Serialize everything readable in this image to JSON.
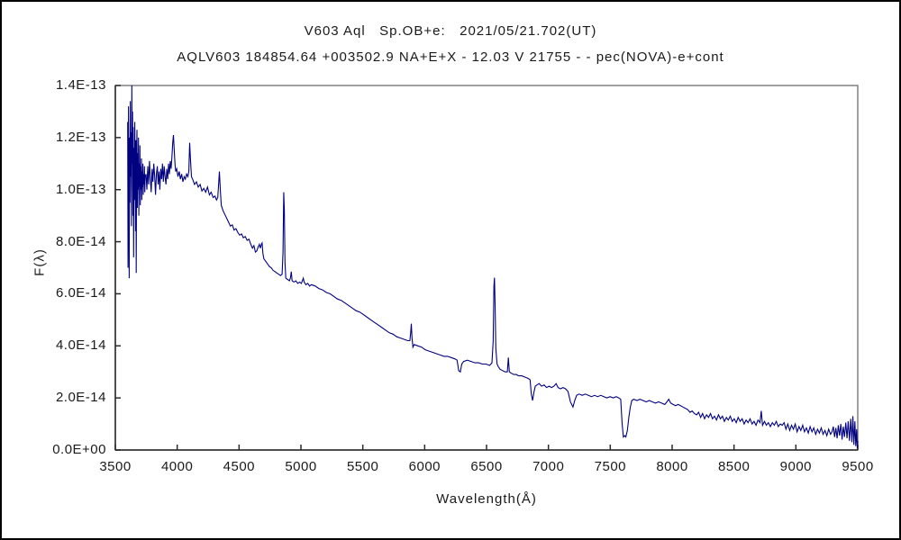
{
  "chart_data": {
    "type": "line",
    "title": "V603 Aql   Sp.OB+e:   2021/05/21.702(UT)",
    "subtitle": "AQLV603 184854.64 +003502.9 NA+E+X - 12.03 V 21755 - - pec(NOVA)-e+cont",
    "xlabel": "Wavelength(Å)",
    "ylabel": "F(λ)",
    "xlim": [
      3500,
      9500
    ],
    "ylim_e14": [
      0,
      14
    ],
    "grid": false,
    "legend": "none",
    "line_color": "#000080",
    "frame_color": "#808080",
    "axis_color": "#2a2a2a",
    "x_ticks": [
      3500,
      4000,
      4500,
      5000,
      5500,
      6000,
      6500,
      7000,
      7500,
      8000,
      8500,
      9000,
      9500
    ],
    "y_ticks": [
      {
        "label": "1.4E-13",
        "value": 14
      },
      {
        "label": "1.2E-13",
        "value": 12
      },
      {
        "label": "1.0E-13",
        "value": 10
      },
      {
        "label": "8.0E-14",
        "value": 8
      },
      {
        "label": "6.0E-14",
        "value": 6
      },
      {
        "label": "4.0E-14",
        "value": 4
      },
      {
        "label": "2.0E-14",
        "value": 2
      },
      {
        "label": "0.0E+00",
        "value": 0
      }
    ],
    "flux_unit_scale": "1e-14",
    "points_e14": [
      [
        3600,
        12.6
      ],
      [
        3603,
        7.0
      ],
      [
        3606,
        13.2
      ],
      [
        3609,
        10.2
      ],
      [
        3612,
        6.6
      ],
      [
        3615,
        12.0
      ],
      [
        3618,
        9.5
      ],
      [
        3621,
        13.4
      ],
      [
        3624,
        10.5
      ],
      [
        3627,
        12.2
      ],
      [
        3630,
        8.6
      ],
      [
        3633,
        14.0
      ],
      [
        3636,
        11.0
      ],
      [
        3639,
        13.0
      ],
      [
        3642,
        9.0
      ],
      [
        3645,
        12.4
      ],
      [
        3648,
        7.4
      ],
      [
        3651,
        11.6
      ],
      [
        3654,
        9.6
      ],
      [
        3657,
        12.6
      ],
      [
        3660,
        10.4
      ],
      [
        3663,
        8.4
      ],
      [
        3666,
        11.9
      ],
      [
        3669,
        6.8
      ],
      [
        3672,
        10.9
      ],
      [
        3675,
        12.3
      ],
      [
        3678,
        9.3
      ],
      [
        3681,
        11.4
      ],
      [
        3684,
        10.0
      ],
      [
        3687,
        12.0
      ],
      [
        3690,
        9.0
      ],
      [
        3693,
        11.0
      ],
      [
        3696,
        10.1
      ],
      [
        3699,
        11.7
      ],
      [
        3702,
        9.4
      ],
      [
        3705,
        10.9
      ],
      [
        3708,
        10.0
      ],
      [
        3711,
        11.2
      ],
      [
        3714,
        9.6
      ],
      [
        3717,
        10.7
      ],
      [
        3720,
        10.1
      ],
      [
        3723,
        11.0
      ],
      [
        3726,
        9.8
      ],
      [
        3729,
        10.6
      ],
      [
        3732,
        10.2
      ],
      [
        3735,
        10.9
      ],
      [
        3738,
        9.9
      ],
      [
        3741,
        10.5
      ],
      [
        3748,
        10.6
      ],
      [
        3755,
        10.0
      ],
      [
        3762,
        10.9
      ],
      [
        3769,
        10.2
      ],
      [
        3776,
        11.1
      ],
      [
        3783,
        10.4
      ],
      [
        3790,
        9.9
      ],
      [
        3797,
        10.8
      ],
      [
        3804,
        10.3
      ],
      [
        3811,
        11.0
      ],
      [
        3818,
        10.5
      ],
      [
        3825,
        9.8
      ],
      [
        3832,
        10.6
      ],
      [
        3839,
        10.9
      ],
      [
        3846,
        10.2
      ],
      [
        3853,
        10.7
      ],
      [
        3860,
        10.0
      ],
      [
        3867,
        10.8
      ],
      [
        3874,
        10.4
      ],
      [
        3881,
        11.0
      ],
      [
        3888,
        10.3
      ],
      [
        3895,
        10.9
      ],
      [
        3902,
        10.5
      ],
      [
        3909,
        10.2
      ],
      [
        3916,
        10.8
      ],
      [
        3923,
        10.4
      ],
      [
        3930,
        11.0
      ],
      [
        3937,
        10.6
      ],
      [
        3944,
        11.1
      ],
      [
        3951,
        10.8
      ],
      [
        3958,
        11.3
      ],
      [
        3964,
        11.8
      ],
      [
        3970,
        12.1
      ],
      [
        3976,
        11.5
      ],
      [
        3982,
        11.0
      ],
      [
        3988,
        10.7
      ],
      [
        3996,
        10.8
      ],
      [
        4006,
        10.5
      ],
      [
        4016,
        10.7
      ],
      [
        4026,
        10.4
      ],
      [
        4036,
        10.6
      ],
      [
        4046,
        10.3
      ],
      [
        4056,
        10.5
      ],
      [
        4066,
        10.4
      ],
      [
        4076,
        10.6
      ],
      [
        4086,
        10.5
      ],
      [
        4094,
        10.7
      ],
      [
        4101,
        11.8
      ],
      [
        4108,
        11.1
      ],
      [
        4115,
        10.5
      ],
      [
        4125,
        10.4
      ],
      [
        4140,
        10.2
      ],
      [
        4155,
        10.3
      ],
      [
        4170,
        10.1
      ],
      [
        4185,
        10.2
      ],
      [
        4200,
        9.95
      ],
      [
        4215,
        10.05
      ],
      [
        4230,
        9.9
      ],
      [
        4245,
        10.1
      ],
      [
        4260,
        9.8
      ],
      [
        4275,
        9.9
      ],
      [
        4290,
        9.7
      ],
      [
        4305,
        9.75
      ],
      [
        4318,
        9.6
      ],
      [
        4328,
        9.7
      ],
      [
        4336,
        10.3
      ],
      [
        4341,
        10.7
      ],
      [
        4348,
        10.0
      ],
      [
        4356,
        9.4
      ],
      [
        4370,
        9.2
      ],
      [
        4385,
        9.05
      ],
      [
        4400,
        8.9
      ],
      [
        4415,
        8.75
      ],
      [
        4430,
        8.6
      ],
      [
        4445,
        8.65
      ],
      [
        4460,
        8.45
      ],
      [
        4475,
        8.5
      ],
      [
        4490,
        8.35
      ],
      [
        4505,
        8.25
      ],
      [
        4520,
        8.3
      ],
      [
        4535,
        8.15
      ],
      [
        4550,
        8.2
      ],
      [
        4565,
        8.05
      ],
      [
        4580,
        8.1
      ],
      [
        4595,
        7.9
      ],
      [
        4608,
        7.75
      ],
      [
        4620,
        7.85
      ],
      [
        4632,
        7.6
      ],
      [
        4644,
        7.65
      ],
      [
        4654,
        7.8
      ],
      [
        4664,
        7.9
      ],
      [
        4672,
        7.75
      ],
      [
        4680,
        7.9
      ],
      [
        4686,
        7.95
      ],
      [
        4693,
        7.55
      ],
      [
        4700,
        7.35
      ],
      [
        4715,
        7.25
      ],
      [
        4730,
        7.15
      ],
      [
        4745,
        7.05
      ],
      [
        4760,
        7.0
      ],
      [
        4775,
        6.9
      ],
      [
        4790,
        6.85
      ],
      [
        4805,
        6.8
      ],
      [
        4820,
        6.75
      ],
      [
        4835,
        6.7
      ],
      [
        4848,
        6.75
      ],
      [
        4855,
        7.6
      ],
      [
        4861,
        9.9
      ],
      [
        4866,
        9.2
      ],
      [
        4871,
        7.2
      ],
      [
        4878,
        6.6
      ],
      [
        4892,
        6.55
      ],
      [
        4906,
        6.5
      ],
      [
        4915,
        6.6
      ],
      [
        4922,
        6.85
      ],
      [
        4929,
        6.5
      ],
      [
        4944,
        6.45
      ],
      [
        4959,
        6.5
      ],
      [
        4974,
        6.4
      ],
      [
        4989,
        6.45
      ],
      [
        5004,
        6.4
      ],
      [
        5012,
        6.5
      ],
      [
        5019,
        6.6
      ],
      [
        5026,
        6.45
      ],
      [
        5040,
        6.35
      ],
      [
        5055,
        6.4
      ],
      [
        5070,
        6.3
      ],
      [
        5085,
        6.35
      ],
      [
        5115,
        6.3
      ],
      [
        5145,
        6.2
      ],
      [
        5175,
        6.15
      ],
      [
        5205,
        6.05
      ],
      [
        5235,
        6.0
      ],
      [
        5265,
        5.9
      ],
      [
        5295,
        5.8
      ],
      [
        5325,
        5.75
      ],
      [
        5355,
        5.65
      ],
      [
        5385,
        5.55
      ],
      [
        5415,
        5.45
      ],
      [
        5445,
        5.35
      ],
      [
        5475,
        5.3
      ],
      [
        5505,
        5.2
      ],
      [
        5535,
        5.1
      ],
      [
        5565,
        5.0
      ],
      [
        5595,
        4.9
      ],
      [
        5625,
        4.8
      ],
      [
        5655,
        4.7
      ],
      [
        5685,
        4.6
      ],
      [
        5715,
        4.5
      ],
      [
        5745,
        4.45
      ],
      [
        5775,
        4.35
      ],
      [
        5805,
        4.3
      ],
      [
        5835,
        4.25
      ],
      [
        5862,
        4.2
      ],
      [
        5880,
        4.2
      ],
      [
        5887,
        4.5
      ],
      [
        5892,
        4.85
      ],
      [
        5898,
        4.3
      ],
      [
        5905,
        3.95
      ],
      [
        5915,
        4.05
      ],
      [
        5945,
        4.0
      ],
      [
        5975,
        3.95
      ],
      [
        6005,
        3.85
      ],
      [
        6035,
        3.8
      ],
      [
        6065,
        3.75
      ],
      [
        6095,
        3.7
      ],
      [
        6125,
        3.65
      ],
      [
        6155,
        3.6
      ],
      [
        6185,
        3.6
      ],
      [
        6215,
        3.55
      ],
      [
        6245,
        3.5
      ],
      [
        6262,
        3.45
      ],
      [
        6275,
        3.05
      ],
      [
        6288,
        3.0
      ],
      [
        6300,
        3.3
      ],
      [
        6315,
        3.4
      ],
      [
        6345,
        3.45
      ],
      [
        6375,
        3.4
      ],
      [
        6405,
        3.35
      ],
      [
        6435,
        3.35
      ],
      [
        6465,
        3.3
      ],
      [
        6495,
        3.3
      ],
      [
        6525,
        3.25
      ],
      [
        6544,
        3.35
      ],
      [
        6554,
        4.2
      ],
      [
        6560,
        6.3
      ],
      [
        6564,
        6.62
      ],
      [
        6569,
        5.6
      ],
      [
        6575,
        3.9
      ],
      [
        6585,
        3.3
      ],
      [
        6595,
        3.2
      ],
      [
        6610,
        3.1
      ],
      [
        6630,
        3.05
      ],
      [
        6650,
        3.0
      ],
      [
        6668,
        3.0
      ],
      [
        6676,
        3.55
      ],
      [
        6684,
        3.0
      ],
      [
        6700,
        2.95
      ],
      [
        6720,
        2.9
      ],
      [
        6740,
        2.9
      ],
      [
        6760,
        2.85
      ],
      [
        6785,
        2.85
      ],
      [
        6810,
        2.8
      ],
      [
        6835,
        2.75
      ],
      [
        6852,
        2.7
      ],
      [
        6862,
        2.15
      ],
      [
        6872,
        1.9
      ],
      [
        6882,
        2.2
      ],
      [
        6894,
        2.45
      ],
      [
        6908,
        2.5
      ],
      [
        6925,
        2.55
      ],
      [
        6945,
        2.45
      ],
      [
        6965,
        2.5
      ],
      [
        6985,
        2.4
      ],
      [
        7005,
        2.45
      ],
      [
        7025,
        2.4
      ],
      [
        7045,
        2.45
      ],
      [
        7062,
        2.55
      ],
      [
        7078,
        2.4
      ],
      [
        7098,
        2.35
      ],
      [
        7118,
        2.4
      ],
      [
        7138,
        2.35
      ],
      [
        7158,
        2.25
      ],
      [
        7178,
        1.85
      ],
      [
        7198,
        1.65
      ],
      [
        7213,
        1.9
      ],
      [
        7228,
        2.1
      ],
      [
        7248,
        2.15
      ],
      [
        7273,
        2.1
      ],
      [
        7298,
        2.15
      ],
      [
        7323,
        2.1
      ],
      [
        7348,
        2.05
      ],
      [
        7373,
        2.1
      ],
      [
        7398,
        2.05
      ],
      [
        7423,
        2.1
      ],
      [
        7448,
        2.05
      ],
      [
        7473,
        2.0
      ],
      [
        7498,
        2.05
      ],
      [
        7523,
        2.0
      ],
      [
        7548,
        2.05
      ],
      [
        7568,
        2.0
      ],
      [
        7584,
        1.95
      ],
      [
        7596,
        1.0
      ],
      [
        7606,
        0.5
      ],
      [
        7616,
        0.55
      ],
      [
        7626,
        0.5
      ],
      [
        7638,
        0.75
      ],
      [
        7650,
        1.25
      ],
      [
        7662,
        1.65
      ],
      [
        7674,
        1.9
      ],
      [
        7690,
        1.95
      ],
      [
        7715,
        1.9
      ],
      [
        7740,
        1.95
      ],
      [
        7765,
        1.9
      ],
      [
        7790,
        1.85
      ],
      [
        7815,
        1.9
      ],
      [
        7840,
        1.85
      ],
      [
        7865,
        1.8
      ],
      [
        7890,
        1.85
      ],
      [
        7915,
        1.8
      ],
      [
        7940,
        1.75
      ],
      [
        7958,
        1.85
      ],
      [
        7972,
        1.95
      ],
      [
        7988,
        1.8
      ],
      [
        8008,
        1.75
      ],
      [
        8028,
        1.7
      ],
      [
        8048,
        1.75
      ],
      [
        8068,
        1.7
      ],
      [
        8088,
        1.65
      ],
      [
        8108,
        1.6
      ],
      [
        8126,
        1.55
      ],
      [
        8144,
        1.45
      ],
      [
        8162,
        1.5
      ],
      [
        8180,
        1.4
      ],
      [
        8198,
        1.35
      ],
      [
        8214,
        1.45
      ],
      [
        8230,
        1.25
      ],
      [
        8246,
        1.4
      ],
      [
        8262,
        1.2
      ],
      [
        8278,
        1.35
      ],
      [
        8294,
        1.25
      ],
      [
        8310,
        1.4
      ],
      [
        8326,
        1.2
      ],
      [
        8342,
        1.3
      ],
      [
        8358,
        1.15
      ],
      [
        8374,
        1.35
      ],
      [
        8390,
        1.2
      ],
      [
        8406,
        1.3
      ],
      [
        8422,
        1.1
      ],
      [
        8438,
        1.25
      ],
      [
        8454,
        1.15
      ],
      [
        8470,
        1.3
      ],
      [
        8486,
        1.1
      ],
      [
        8502,
        1.2
      ],
      [
        8518,
        1.05
      ],
      [
        8534,
        1.25
      ],
      [
        8550,
        1.1
      ],
      [
        8566,
        1.2
      ],
      [
        8582,
        1.0
      ],
      [
        8598,
        1.15
      ],
      [
        8614,
        1.05
      ],
      [
        8630,
        1.2
      ],
      [
        8646,
        1.0
      ],
      [
        8662,
        1.1
      ],
      [
        8678,
        0.95
      ],
      [
        8694,
        1.15
      ],
      [
        8710,
        1.05
      ],
      [
        8720,
        1.5
      ],
      [
        8730,
        0.95
      ],
      [
        8746,
        1.1
      ],
      [
        8762,
        0.95
      ],
      [
        8778,
        1.05
      ],
      [
        8794,
        0.9
      ],
      [
        8810,
        1.05
      ],
      [
        8826,
        0.95
      ],
      [
        8842,
        1.1
      ],
      [
        8858,
        0.9
      ],
      [
        8874,
        1.0
      ],
      [
        8890,
        0.95
      ],
      [
        8905,
        1.05
      ],
      [
        8920,
        0.8
      ],
      [
        8935,
        1.0
      ],
      [
        8950,
        0.75
      ],
      [
        8965,
        0.95
      ],
      [
        8980,
        0.8
      ],
      [
        8995,
        1.0
      ],
      [
        9010,
        0.7
      ],
      [
        9025,
        0.9
      ],
      [
        9040,
        0.75
      ],
      [
        9055,
        0.95
      ],
      [
        9070,
        0.7
      ],
      [
        9085,
        0.85
      ],
      [
        9100,
        0.65
      ],
      [
        9115,
        0.9
      ],
      [
        9130,
        0.7
      ],
      [
        9145,
        0.85
      ],
      [
        9160,
        0.6
      ],
      [
        9175,
        0.8
      ],
      [
        9190,
        0.65
      ],
      [
        9205,
        0.85
      ],
      [
        9220,
        0.6
      ],
      [
        9235,
        0.75
      ],
      [
        9250,
        0.55
      ],
      [
        9265,
        0.8
      ],
      [
        9280,
        0.6
      ],
      [
        9292,
        0.7
      ],
      [
        9303,
        0.9
      ],
      [
        9313,
        0.5
      ],
      [
        9323,
        0.85
      ],
      [
        9333,
        0.45
      ],
      [
        9343,
        0.95
      ],
      [
        9353,
        0.55
      ],
      [
        9363,
        1.0
      ],
      [
        9373,
        0.4
      ],
      [
        9383,
        0.9
      ],
      [
        9393,
        0.5
      ],
      [
        9403,
        1.05
      ],
      [
        9413,
        0.45
      ],
      [
        9423,
        1.1
      ],
      [
        9433,
        0.35
      ],
      [
        9443,
        1.2
      ],
      [
        9453,
        0.3
      ],
      [
        9461,
        1.3
      ],
      [
        9469,
        0.2
      ],
      [
        9477,
        1.1
      ],
      [
        9484,
        0.15
      ],
      [
        9491,
        0.8
      ],
      [
        9496,
        0.05
      ],
      [
        9500,
        0.35
      ]
    ]
  }
}
